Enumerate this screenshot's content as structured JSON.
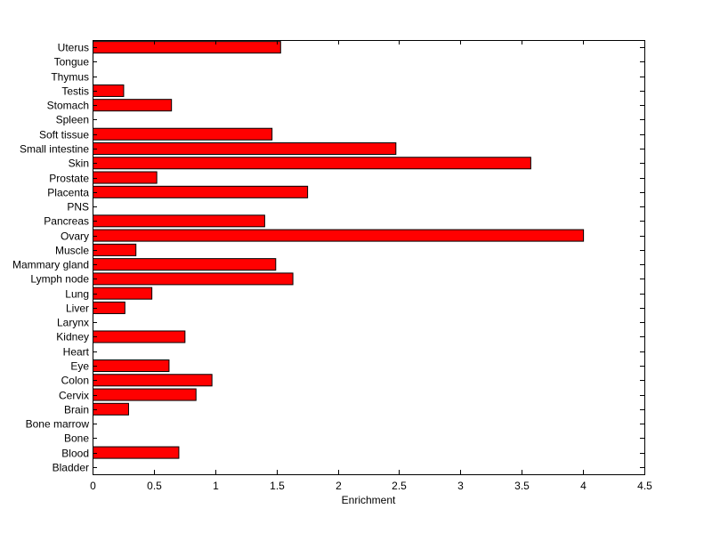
{
  "chart_data": {
    "type": "bar",
    "orientation": "horizontal",
    "title": "",
    "xlabel": "Enrichment",
    "ylabel": "",
    "xlim": [
      0,
      4.5
    ],
    "xticks": [
      0,
      0.5,
      1,
      1.5,
      2,
      2.5,
      3,
      3.5,
      4,
      4.5
    ],
    "xtick_labels": [
      "0",
      "0.5",
      "1",
      "1.5",
      "2",
      "2.5",
      "3",
      "3.5",
      "4",
      "4.5"
    ],
    "grid": false,
    "bar_color": "#ff0000",
    "bar_edge_color": "#000000",
    "categories": [
      "Bladder",
      "Blood",
      "Bone",
      "Bone marrow",
      "Brain",
      "Cervix",
      "Colon",
      "Eye",
      "Heart",
      "Kidney",
      "Larynx",
      "Liver",
      "Lung",
      "Lymph node",
      "Mammary gland",
      "Muscle",
      "Ovary",
      "Pancreas",
      "PNS",
      "Placenta",
      "Prostate",
      "Skin",
      "Small intestine",
      "Soft tissue",
      "Spleen",
      "Stomach",
      "Testis",
      "Thymus",
      "Tongue",
      "Uterus"
    ],
    "values": [
      0,
      0.7,
      0,
      0,
      0.29,
      0.84,
      0.97,
      0.62,
      0,
      0.75,
      0,
      0.26,
      0.48,
      1.63,
      1.49,
      0.35,
      4.0,
      1.4,
      0,
      1.75,
      0.52,
      3.57,
      2.47,
      1.46,
      0,
      0.64,
      0.25,
      0,
      0,
      1.53
    ]
  }
}
